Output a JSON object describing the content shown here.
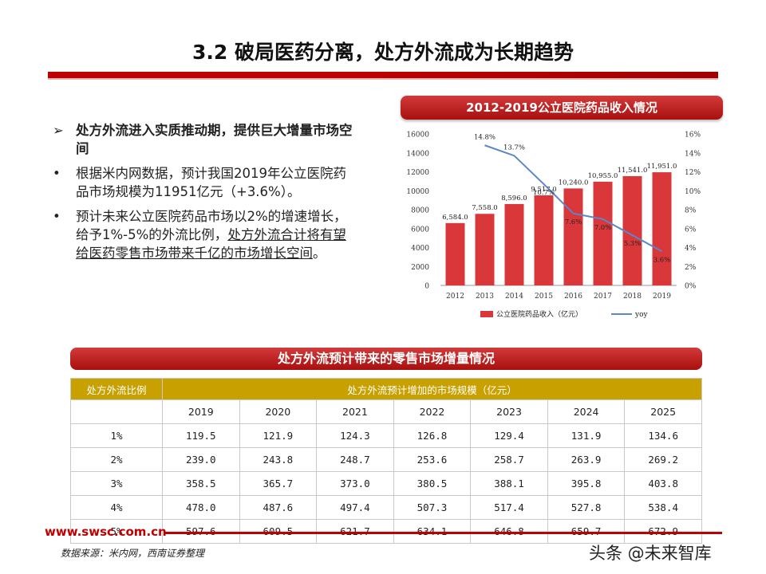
{
  "page": {
    "title": "3.2 破局医药分离，处方外流成为长期趋势",
    "site": "www.swsc.com.cn",
    "source": "数据来源：米内网，西南证券整理",
    "watermark": "头条 @未来智库"
  },
  "bullets": [
    {
      "mark": "➢",
      "text": "处方外流进入实质推动期，提供巨大增量市场空间",
      "bold": true
    },
    {
      "mark": "•",
      "text": "根据米内网数据，预计我国2019年公立医院药品市场规模为11951亿元（+3.6%）。"
    },
    {
      "mark": "•",
      "text_plain": "预计未来公立医院药品市场以2%的增速增长，给予1%-5%的外流比例，",
      "text_underline": "处方外流合计将有望给医药零售市场带来千亿的市场增长空间",
      "text_end": "。"
    }
  ],
  "chart_banner": "2012-2019公立医院药品收入情况",
  "chart_data": {
    "type": "bar",
    "title": "2012-2019公立医院药品收入情况",
    "categories": [
      "2012",
      "2013",
      "2014",
      "2015",
      "2016",
      "2017",
      "2018",
      "2019"
    ],
    "series": [
      {
        "name": "公立医院药品收入（亿元）",
        "type": "bar",
        "axis": "left",
        "values": [
          6584.0,
          7558.0,
          8596.0,
          9517.0,
          10240.0,
          10955.0,
          11541.0,
          11951.0
        ],
        "labels": [
          "6,584.0",
          "7,558.0",
          "8,596.0",
          "9,517.0",
          "10,240.0",
          "10,955.0",
          "11,541.0",
          "11,951.0"
        ]
      },
      {
        "name": "yoy",
        "type": "line",
        "axis": "right",
        "values": [
          null,
          14.8,
          13.7,
          10.7,
          7.6,
          7.0,
          5.3,
          3.6
        ],
        "labels": [
          "",
          "14.8%",
          "13.7%",
          "10.7%",
          "7.6%",
          "7.0%",
          "5.3%",
          "3.6%"
        ]
      }
    ],
    "y_left": {
      "min": 0,
      "max": 16000,
      "ticks": [
        "0",
        "2000",
        "4000",
        "6000",
        "8000",
        "10000",
        "12000",
        "14000",
        "16000"
      ]
    },
    "y_right": {
      "min": 0,
      "max": 16,
      "ticks": [
        "0%",
        "2%",
        "4%",
        "6%",
        "8%",
        "10%",
        "12%",
        "14%",
        "16%"
      ]
    },
    "legend_position": "bottom",
    "grid": false,
    "colors": {
      "bar": "#d9373a",
      "line": "#5b87c4"
    }
  },
  "table": {
    "banner": "处方外流预计带来的零售市场增量情况",
    "corner_header": "处方外流比例",
    "span_header": "处方外流预计增加的市场规模（亿元）",
    "years": [
      "2019",
      "2020",
      "2021",
      "2022",
      "2023",
      "2024",
      "2025"
    ],
    "rows": [
      {
        "ratio": "1%",
        "values": [
          "119.5",
          "121.9",
          "124.3",
          "126.8",
          "129.4",
          "131.9",
          "134.6"
        ]
      },
      {
        "ratio": "2%",
        "values": [
          "239.0",
          "243.8",
          "248.7",
          "253.6",
          "258.7",
          "263.9",
          "269.2"
        ]
      },
      {
        "ratio": "3%",
        "values": [
          "358.5",
          "365.7",
          "373.0",
          "380.5",
          "388.1",
          "395.8",
          "403.8"
        ]
      },
      {
        "ratio": "4%",
        "values": [
          "478.0",
          "487.6",
          "497.4",
          "507.3",
          "517.4",
          "527.8",
          "538.4"
        ]
      },
      {
        "ratio": "5%",
        "values": [
          "597.6",
          "609.5",
          "621.7",
          "634.1",
          "646.8",
          "659.7",
          "672.9"
        ]
      }
    ],
    "colors": {
      "header": "#c8a000"
    }
  }
}
